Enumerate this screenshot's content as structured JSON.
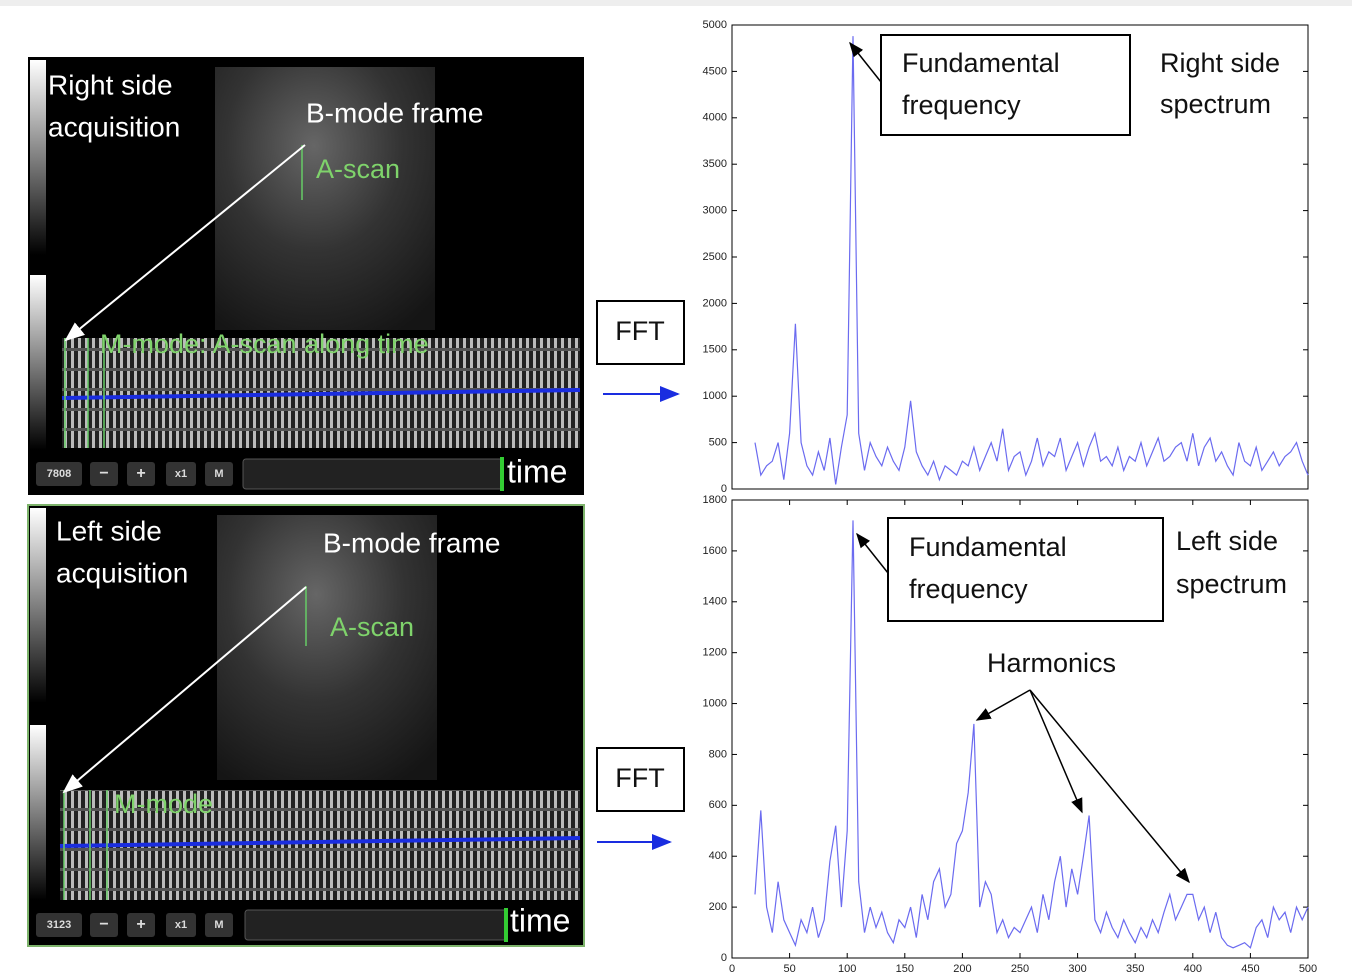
{
  "panels": [
    {
      "title": [
        "Right side",
        "acquisition"
      ],
      "bmode": "B-mode frame",
      "ascan": "A-scan",
      "mmode": "M-mode: A-scan along time",
      "time": "time",
      "counter": "7808",
      "minus": "−",
      "plus": "+",
      "zoom": "x1",
      "mode": "M",
      "fft": "FFT"
    },
    {
      "title": [
        "Left side",
        "acquisition"
      ],
      "bmode": "B-mode frame",
      "ascan": "A-scan",
      "mmode": "M-mode",
      "time": "time",
      "counter": "3123",
      "minus": "−",
      "plus": "+",
      "zoom": "x1",
      "mode": "M",
      "fft": "FFT"
    }
  ],
  "chart_data": [
    {
      "type": "line",
      "annotation": [
        "Fundamental",
        "frequency"
      ],
      "label": [
        "Right side",
        "spectrum"
      ],
      "x": [
        20,
        25,
        30,
        35,
        40,
        45,
        50,
        55,
        60,
        65,
        70,
        75,
        80,
        85,
        90,
        95,
        100,
        105,
        110,
        115,
        120,
        125,
        130,
        135,
        140,
        145,
        150,
        155,
        160,
        165,
        170,
        175,
        180,
        185,
        190,
        195,
        200,
        205,
        210,
        215,
        220,
        225,
        230,
        235,
        240,
        245,
        250,
        255,
        260,
        265,
        270,
        275,
        280,
        285,
        290,
        295,
        300,
        305,
        310,
        315,
        320,
        325,
        330,
        335,
        340,
        345,
        350,
        355,
        360,
        365,
        370,
        375,
        380,
        385,
        390,
        395,
        400,
        405,
        410,
        415,
        420,
        425,
        430,
        435,
        440,
        445,
        450,
        455,
        460,
        465,
        470,
        475,
        480,
        485,
        490,
        495,
        500
      ],
      "series": [
        {
          "color": "#6b6bf0",
          "values": [
            500,
            150,
            250,
            300,
            500,
            100,
            600,
            1780,
            500,
            250,
            150,
            400,
            200,
            550,
            50,
            450,
            800,
            4880,
            600,
            200,
            500,
            350,
            250,
            450,
            300,
            200,
            450,
            950,
            400,
            250,
            150,
            300,
            100,
            250,
            200,
            150,
            300,
            250,
            450,
            200,
            350,
            500,
            300,
            650,
            200,
            350,
            400,
            150,
            300,
            550,
            250,
            400,
            350,
            550,
            200,
            350,
            500,
            250,
            450,
            600,
            300,
            350,
            250,
            450,
            200,
            350,
            300,
            500,
            250,
            400,
            550,
            300,
            350,
            450,
            500,
            300,
            600,
            250,
            450,
            550,
            300,
            400,
            250,
            150,
            500,
            300,
            250,
            450,
            200,
            300,
            400,
            250,
            350,
            400,
            500,
            300,
            150
          ]
        }
      ],
      "xlim": [
        0,
        500
      ],
      "ylim": [
        0,
        5000
      ],
      "yticks": [
        0,
        500,
        1000,
        1500,
        2000,
        2500,
        3000,
        3500,
        4000,
        4500,
        5000
      ]
    },
    {
      "type": "line",
      "annotation": [
        "Fundamental",
        "frequency"
      ],
      "label": [
        "Left side",
        "spectrum"
      ],
      "harmonics": "Harmonics",
      "x": [
        20,
        25,
        30,
        35,
        40,
        45,
        50,
        55,
        60,
        65,
        70,
        75,
        80,
        85,
        90,
        95,
        100,
        105,
        110,
        115,
        120,
        125,
        130,
        135,
        140,
        145,
        150,
        155,
        160,
        165,
        170,
        175,
        180,
        185,
        190,
        195,
        200,
        205,
        210,
        215,
        220,
        225,
        230,
        235,
        240,
        245,
        250,
        255,
        260,
        265,
        270,
        275,
        280,
        285,
        290,
        295,
        300,
        305,
        310,
        315,
        320,
        325,
        330,
        335,
        340,
        345,
        350,
        355,
        360,
        365,
        370,
        375,
        380,
        385,
        390,
        395,
        400,
        405,
        410,
        415,
        420,
        425,
        430,
        435,
        440,
        445,
        450,
        455,
        460,
        465,
        470,
        475,
        480,
        485,
        490,
        495,
        500
      ],
      "series": [
        {
          "color": "#6b6bf0",
          "values": [
            250,
            580,
            200,
            100,
            300,
            150,
            100,
            50,
            150,
            100,
            200,
            80,
            150,
            380,
            520,
            200,
            500,
            1720,
            300,
            100,
            200,
            120,
            180,
            100,
            60,
            150,
            120,
            200,
            80,
            250,
            150,
            300,
            350,
            200,
            250,
            450,
            500,
            650,
            920,
            200,
            300,
            250,
            100,
            150,
            80,
            120,
            100,
            150,
            200,
            100,
            250,
            150,
            300,
            400,
            200,
            350,
            250,
            400,
            560,
            150,
            100,
            180,
            120,
            80,
            150,
            100,
            60,
            120,
            80,
            150,
            100,
            180,
            250,
            150,
            200,
            250,
            250,
            150,
            200,
            100,
            180,
            80,
            50,
            40,
            50,
            60,
            40,
            120,
            150,
            80,
            200,
            150,
            180,
            100,
            200,
            150,
            200
          ]
        }
      ],
      "xlim": [
        0,
        500
      ],
      "xticks": [
        0,
        50,
        100,
        150,
        200,
        250,
        300,
        350,
        400,
        450,
        500
      ],
      "ylim": [
        0,
        1800
      ],
      "yticks": [
        0,
        200,
        400,
        600,
        800,
        1000,
        1200,
        1400,
        1600,
        1800
      ]
    }
  ]
}
